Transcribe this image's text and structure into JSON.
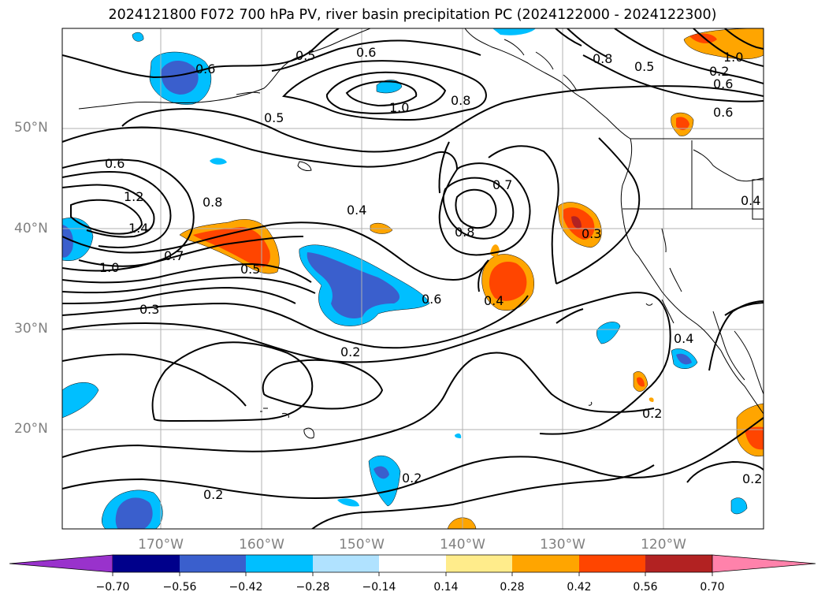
{
  "title": "2024121800 F072 700 hPa PV, river basin precipitation PC (2024122000 - 2024122300)",
  "lat_labels": [
    "50°N",
    "40°N",
    "30°N",
    "20°N"
  ],
  "lon_labels": [
    "170°W",
    "160°W",
    "150°W",
    "140°W",
    "130°W",
    "120°W"
  ],
  "colorbar": {
    "ticks": [
      "−0.70",
      "−0.56",
      "−0.42",
      "−0.28",
      "−0.14",
      "0.14",
      "0.28",
      "0.42",
      "0.56",
      "0.70"
    ],
    "colors": [
      "#9932cc",
      "#00008b",
      "#3a5fcd",
      "#00bfff",
      "#b0e2ff",
      "#ffffff",
      "#ffec8b",
      "#ffa500",
      "#ff4500",
      "#b22222",
      "#ff82ab"
    ]
  },
  "contour_labels": [
    "0.6",
    "0.5",
    "0.6",
    "1.0",
    "0.8",
    "0.8",
    "0.5",
    "1.0",
    "0.6",
    "0.6",
    "0.5",
    "0.6",
    "1.2",
    "1.4",
    "1.0",
    "0.8",
    "0.7",
    "0.5",
    "0.4",
    "0.4",
    "0.7",
    "0.8",
    "0.6",
    "0.4",
    "0.3",
    "0.3",
    "0.2",
    "0.4",
    "0.2",
    "0.2",
    "0.2",
    "0.2",
    "0.2"
  ],
  "colors": {
    "contour": "#000000",
    "grid": "#b0b0b0",
    "coast": "#000000",
    "neg_light": "#00bfff",
    "neg_mid": "#3a5fcd",
    "pos_light": "#ffa500",
    "pos_mid": "#ff4500",
    "pos_dark": "#b22222"
  }
}
